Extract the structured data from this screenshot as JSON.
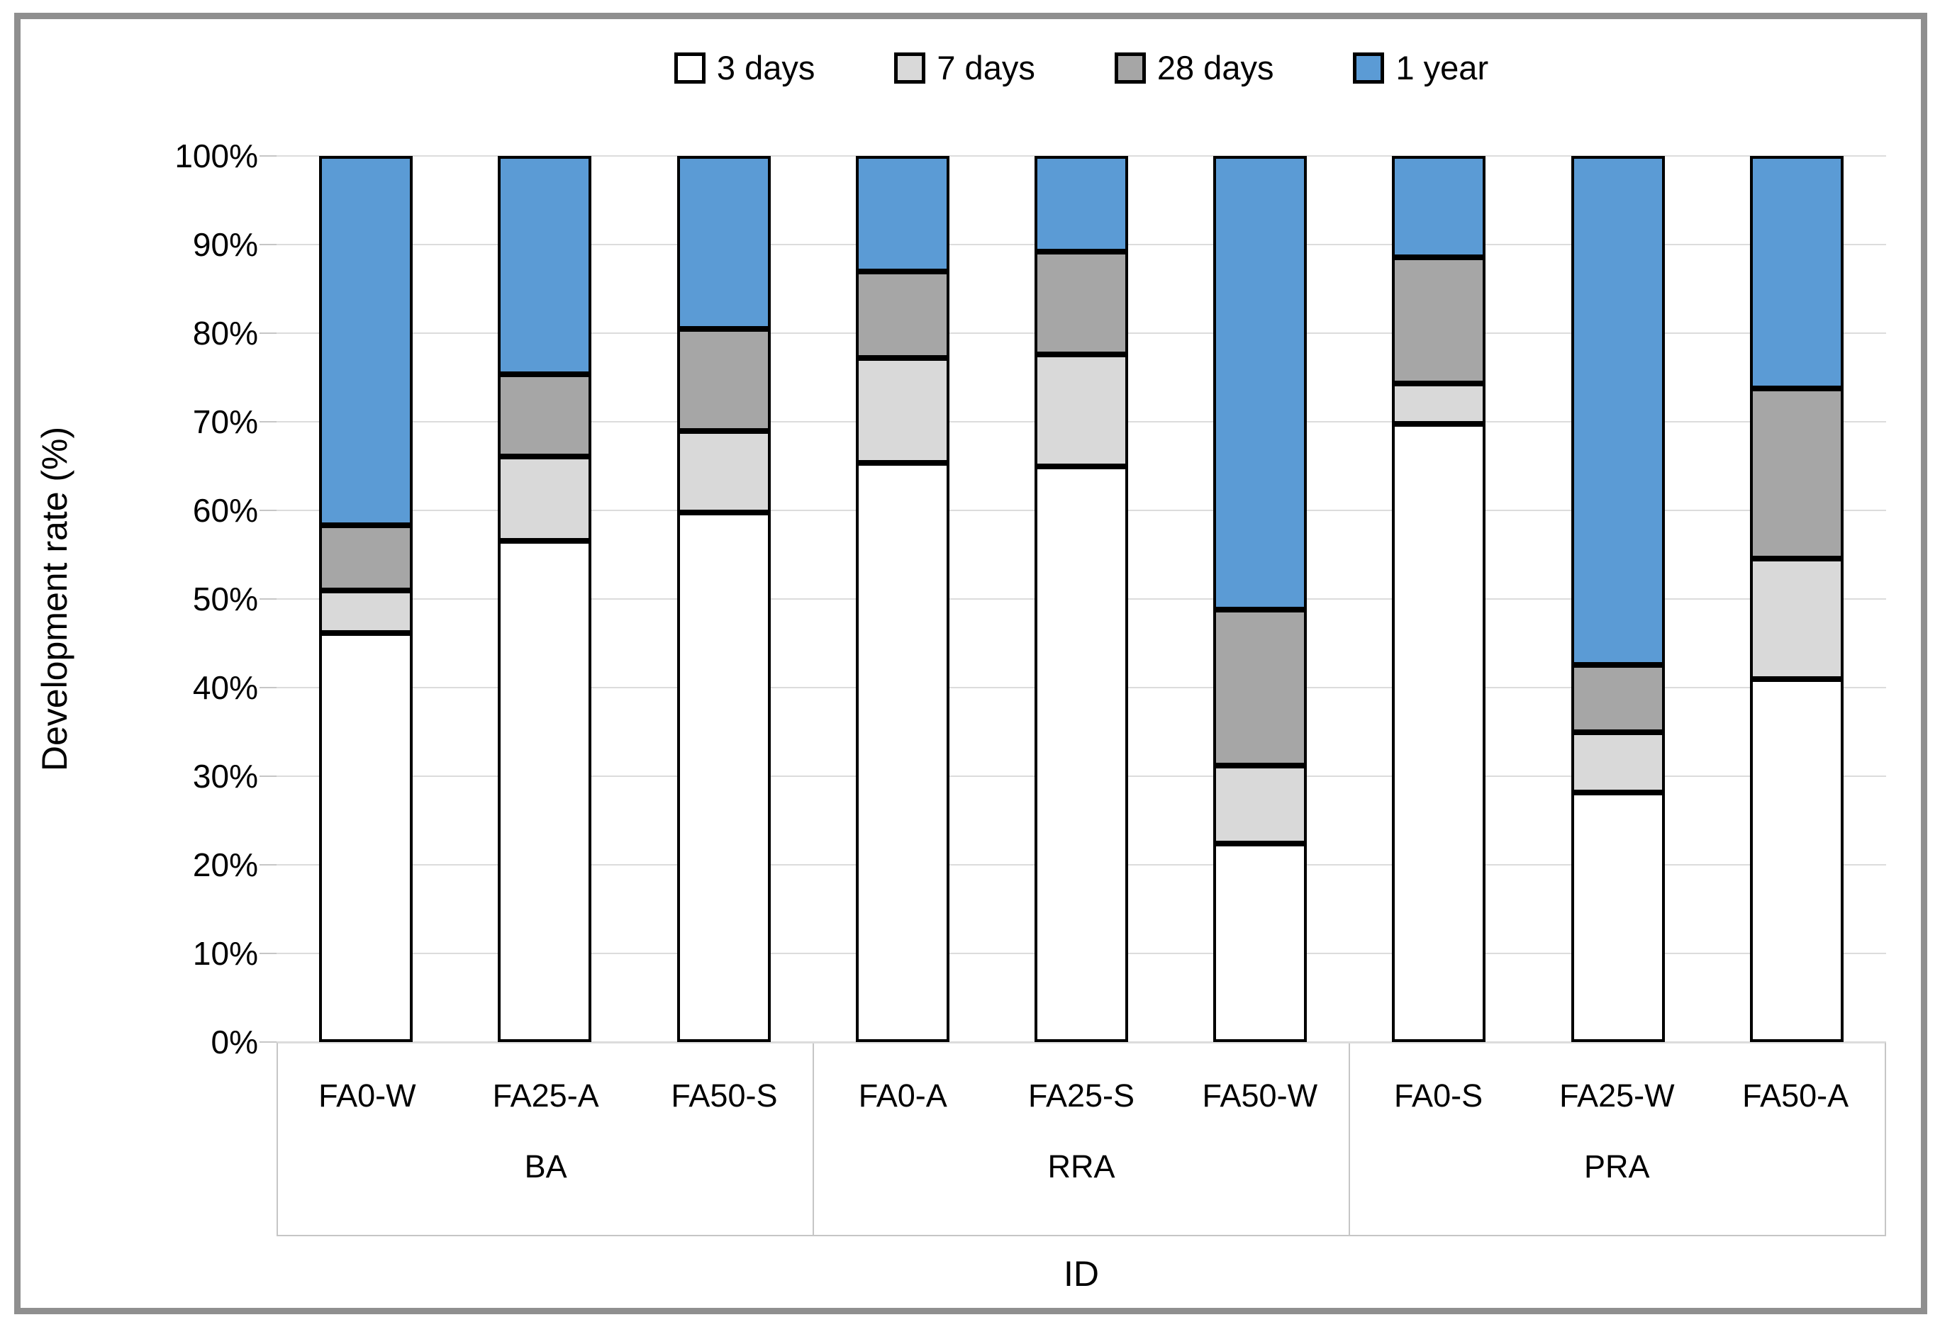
{
  "figure": {
    "y_axis_title": "Development rate (%)",
    "x_axis_title": "ID"
  },
  "legend": [
    {
      "label": "3 days",
      "color": "#FFFFFF"
    },
    {
      "label": "7 days",
      "color": "#D9D9D9"
    },
    {
      "label": "28 days",
      "color": "#A6A6A6"
    },
    {
      "label": "1 year",
      "color": "#5B9BD5"
    }
  ],
  "y_ticks": [
    "0%",
    "10%",
    "20%",
    "30%",
    "40%",
    "50%",
    "60%",
    "70%",
    "80%",
    "90%",
    "100%"
  ],
  "chart_data": {
    "type": "bar",
    "stacked": true,
    "units": "percent",
    "title": "",
    "xlabel": "ID",
    "ylabel": "Development rate (%)",
    "ylim": [
      0,
      100
    ],
    "y_tick_step": 10,
    "grid": true,
    "legend_position": "top",
    "series_names": [
      "3 days",
      "7 days",
      "28 days",
      "1 year"
    ],
    "colors": {
      "3 days": "#FFFFFF",
      "7 days": "#D9D9D9",
      "28 days": "#A6A6A6",
      "1 year": "#5B9BD5"
    },
    "groups": [
      {
        "label": "BA",
        "bars": [
          {
            "label": "FA0-W",
            "values": [
              46.2,
              4.8,
              7.3,
              41.7
            ]
          },
          {
            "label": "FA25-A",
            "values": [
              56.6,
              9.5,
              9.3,
              24.6
            ]
          },
          {
            "label": "FA50-S",
            "values": [
              59.8,
              9.2,
              11.5,
              19.5
            ]
          }
        ]
      },
      {
        "label": "RRA",
        "bars": [
          {
            "label": "FA0-A",
            "values": [
              65.4,
              11.8,
              9.8,
              13.0
            ]
          },
          {
            "label": "FA25-S",
            "values": [
              65.0,
              12.6,
              11.6,
              10.8
            ]
          },
          {
            "label": "FA50-W",
            "values": [
              22.4,
              8.8,
              17.6,
              51.2
            ]
          }
        ]
      },
      {
        "label": "PRA",
        "bars": [
          {
            "label": "FA0-S",
            "values": [
              69.8,
              4.5,
              14.3,
              11.4
            ]
          },
          {
            "label": "FA25-W",
            "values": [
              28.2,
              6.8,
              7.6,
              57.4
            ]
          },
          {
            "label": "FA50-A",
            "values": [
              41.0,
              13.6,
              19.2,
              26.2
            ]
          }
        ]
      }
    ]
  }
}
